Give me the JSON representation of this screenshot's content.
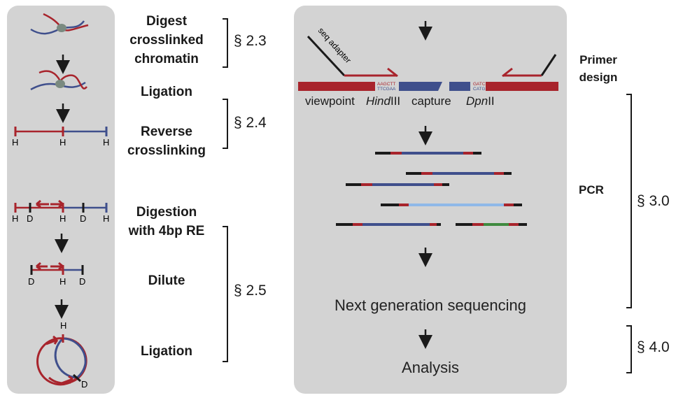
{
  "steps": {
    "digest": "Digest\ncrosslinked\nchromatin",
    "ligation1": "Ligation",
    "reverse": "Reverse\ncrosslinking",
    "digestion4bp": "Digestion\nwith 4bp RE",
    "dilute": "Dilute",
    "ligation2": "Ligation"
  },
  "sections": {
    "s23": "§ 2.3",
    "s24": "§ 2.4",
    "s25": "§ 2.5",
    "s30": "§ 3.0",
    "s40": "§ 4.0"
  },
  "right_steps": {
    "primer_design": "Primer\ndesign",
    "pcr": "PCR"
  },
  "site_labels": {
    "h": "H",
    "d": "D"
  },
  "construct": {
    "seq_adapter": "seq adapter",
    "viewpoint": "viewpoint",
    "hindiii_italic": "Hind",
    "hindiii_roman": "III",
    "capture": "capture",
    "dpnii_italic": "Dpn",
    "dpnii_roman": "II",
    "hind_top": "AAGCTT",
    "hind_bottom": "TTCGAA",
    "dpn_top": "GATC",
    "dpn_bottom": "CATG"
  },
  "ngs": "Next generation sequencing",
  "analysis": "Analysis",
  "colors": {
    "red": "#a8242c",
    "blue": "#3f4f8c",
    "light_blue": "#8fb8e8",
    "green": "#3f8a3f",
    "panel": "#d3d3d3",
    "ink": "#1a1a1a"
  }
}
